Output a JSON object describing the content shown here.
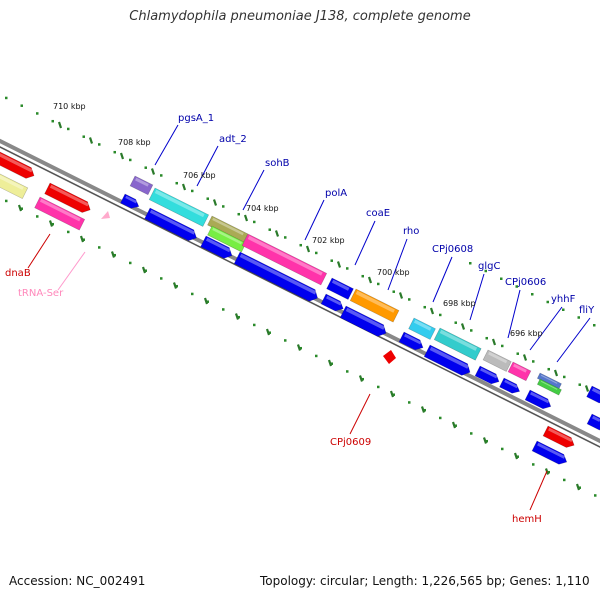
{
  "title": "Chlamydophila pneumoniae J138, complete genome",
  "footer": {
    "accession": "Accession: NC_002491",
    "stats": "Topology: circular; Length: 1,226,565 bp; Genes: 1,110"
  },
  "scale_labels": [
    "710 kbp",
    "708 kbp",
    "706 kbp",
    "704 kbp",
    "702 kbp",
    "700 kbp",
    "698 kbp",
    "696 kbp"
  ],
  "genes": [
    {
      "name": "pgsA_1",
      "color": "#0000aa"
    },
    {
      "name": "adt_2",
      "color": "#0000aa"
    },
    {
      "name": "sohB",
      "color": "#0000aa"
    },
    {
      "name": "polA",
      "color": "#0000aa"
    },
    {
      "name": "coaE",
      "color": "#0000aa"
    },
    {
      "name": "rho",
      "color": "#0000aa"
    },
    {
      "name": "CPj0608",
      "color": "#0000aa"
    },
    {
      "name": "glgC",
      "color": "#0000aa"
    },
    {
      "name": "CPj0606",
      "color": "#0000aa"
    },
    {
      "name": "yhhF",
      "color": "#0000aa"
    },
    {
      "name": "fliY",
      "color": "#0000aa"
    },
    {
      "name": "dnaB",
      "color": "#cc0000"
    },
    {
      "name": "tRNA-Ser",
      "color": "#ff88bb"
    },
    {
      "name": "CPj0609",
      "color": "#cc0000"
    },
    {
      "name": "hemH",
      "color": "#cc0000"
    }
  ]
}
